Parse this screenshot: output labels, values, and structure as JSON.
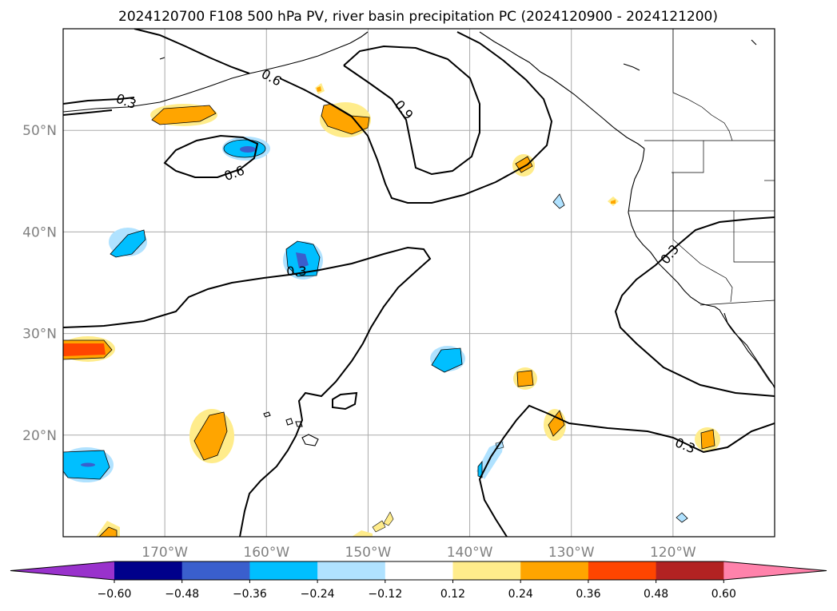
{
  "title": "2024120700 F108 500 hPa PV, river basin precipitation PC (2024120900 - 2024121200)",
  "map": {
    "lon_range": [
      -180,
      -110
    ],
    "lat_range": [
      10,
      60
    ],
    "lon_ticks": [
      {
        "value": -170,
        "label": "170°W"
      },
      {
        "value": -160,
        "label": "160°W"
      },
      {
        "value": -150,
        "label": "150°W"
      },
      {
        "value": -140,
        "label": "140°W"
      },
      {
        "value": -130,
        "label": "130°W"
      },
      {
        "value": -120,
        "label": "120°W"
      }
    ],
    "lat_ticks": [
      {
        "value": 20,
        "label": "20°N"
      },
      {
        "value": 30,
        "label": "30°N"
      },
      {
        "value": 40,
        "label": "40°N"
      },
      {
        "value": 50,
        "label": "50°N"
      }
    ],
    "grid": true,
    "contour_labels": [
      "0.3",
      "0.6",
      "0.6",
      "0.9",
      "0.3",
      "0.3",
      "0.3"
    ]
  },
  "colorbar": {
    "colors": [
      "#9932cc",
      "#00008b",
      "#3a5fcd",
      "#00bfff",
      "#b0e2ff",
      "#ffffff",
      "#ffec8b",
      "#ffa500",
      "#ff4500",
      "#b22222",
      "#ff82ab"
    ],
    "tick_labels": [
      "−0.60",
      "−0.48",
      "−0.36",
      "−0.24",
      "−0.12",
      "0.12",
      "0.24",
      "0.36",
      "0.48",
      "0.60"
    ]
  }
}
